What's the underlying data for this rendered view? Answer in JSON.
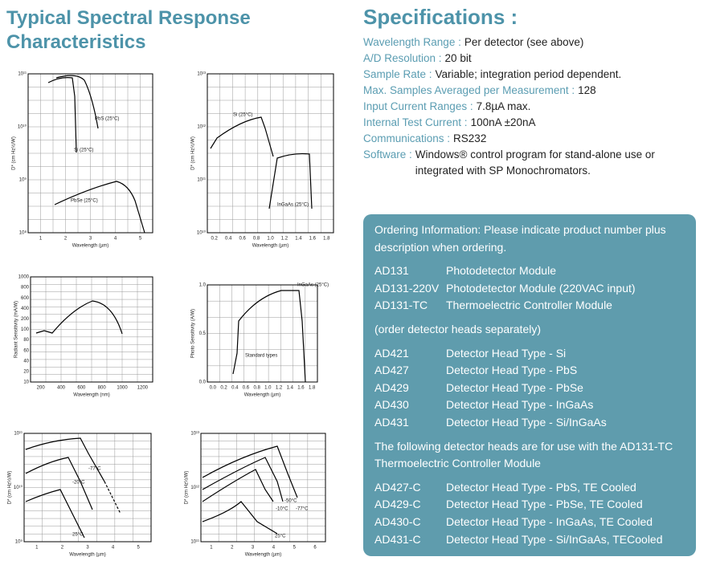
{
  "left_title": "Typical Spectral Response Characteristics",
  "charts": [
    {
      "x_label": "Wavelength (µm)",
      "y_label": "D* (cm Hz½/W)",
      "x_ticks": [
        "1",
        "2",
        "3",
        "4",
        "5"
      ],
      "y_ticks": [
        "10¹¹",
        "10¹⁰",
        "10⁹",
        "10⁸"
      ],
      "curve_labels": [
        "PbS (25°C)",
        "Si (25°C)",
        "PbSe (25°C)"
      ]
    },
    {
      "x_label": "Wavelength (µm)",
      "y_label": "D* (cm Hz½/W)",
      "x_ticks": [
        "0.2",
        "0.4",
        "0.6",
        "0.8",
        "1.0",
        "1.2",
        "1.4",
        "1.6",
        "1.8"
      ],
      "y_ticks": [
        "10¹³",
        "10¹²",
        "10¹¹",
        "10¹⁰"
      ],
      "curve_labels": [
        "Si (25°C)",
        "InGaAs (25°C)"
      ]
    },
    {
      "x_label": "Wavelength (nm)",
      "y_label": "Radiant Sensitivity (mA/W)",
      "x_ticks": [
        "200",
        "400",
        "600",
        "800",
        "1000",
        "1200"
      ],
      "y_ticks": [
        "1000",
        "800",
        "600",
        "400",
        "200",
        "100",
        "80",
        "60",
        "40",
        "20",
        "10"
      ]
    },
    {
      "x_label": "Wavelength (µm)",
      "y_label": "Photo Sensitivity (A/W)",
      "x_ticks": [
        "0.0",
        "0.2",
        "0.4",
        "0.6",
        "0.8",
        "1.0",
        "1.2",
        "1.4",
        "1.6",
        "1.8"
      ],
      "y_ticks": [
        "1.0",
        "0.5",
        "0.0"
      ],
      "curve_labels": [
        "InGaAs (25°C)",
        "Standard types"
      ]
    },
    {
      "x_label": "Wavelength (µm)",
      "y_label": "D* (cm Hz½/W)",
      "x_ticks": [
        "1",
        "2",
        "3",
        "4",
        "5"
      ],
      "y_ticks": [
        "10¹¹",
        "10¹⁰",
        "10⁹"
      ],
      "curve_labels": [
        "-77°C",
        "-20°C",
        "25°C"
      ]
    },
    {
      "x_label": "Wavelength (µm)",
      "y_label": "D* (cm Hz½/W)",
      "x_ticks": [
        "1",
        "2",
        "3",
        "4",
        "5",
        "6"
      ],
      "y_ticks": [
        "10¹³",
        "10¹²",
        "10¹¹"
      ],
      "curve_labels": [
        "-50°C",
        "-10°C",
        "-77°C",
        "25°C"
      ]
    }
  ],
  "specs": {
    "title": "Specifications :",
    "items": [
      {
        "label": "Wavelength Range :",
        "value": "Per detector (see above)"
      },
      {
        "label": "A/D Resolution :",
        "value": "20 bit"
      },
      {
        "label": "Sample Rate :",
        "value": "Variable; integration period dependent."
      },
      {
        "label": "Max. Samples Averaged per Measurement :",
        "value": "128"
      },
      {
        "label": "Input Current Ranges :",
        "value": "7.8µA max."
      },
      {
        "label": "Internal Test Current :",
        "value": "100nA ±20nA"
      },
      {
        "label": "Communications :",
        "value": "RS232"
      },
      {
        "label": "Software :",
        "value": "Windows® control program for stand-alone use or integrated with SP Monochromators."
      }
    ]
  },
  "ordering": {
    "intro": "Ordering Information: Please indicate product number plus description when ordering.",
    "modules": [
      [
        "AD131",
        "Photodetector Module"
      ],
      [
        "AD131-220V",
        "Photodetector Module (220VAC input)"
      ],
      [
        "AD131-TC",
        "Thermoelectric Controller Module"
      ]
    ],
    "note1": "(order detector heads separately)",
    "heads": [
      [
        "AD421",
        "Detector Head Type - Si"
      ],
      [
        "AD427",
        "Detector Head Type - PbS"
      ],
      [
        "AD429",
        "Detector Head Type - PbSe"
      ],
      [
        "AD430",
        "Detector Head Type - InGaAs"
      ],
      [
        "AD431",
        "Detector Head Type - Si/InGaAs"
      ]
    ],
    "note2": "The following detector heads are for use with the AD131-TC Thermoelectric Controller Module",
    "cooled": [
      [
        "AD427-C",
        "Detector Head Type - PbS, TE Cooled"
      ],
      [
        "AD429-C",
        "Detector Head Type - PbSe, TE Cooled"
      ],
      [
        "AD430-C",
        "Detector Head Type - InGaAs, TE Cooled"
      ],
      [
        "AD431-C",
        "Detector Head Type - Si/InGaAs, TECooled"
      ]
    ]
  }
}
